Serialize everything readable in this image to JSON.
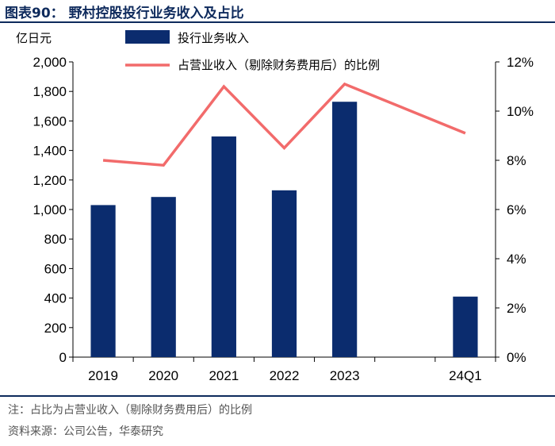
{
  "title": "图表90：  野村控股投行业务收入及占比",
  "footer": {
    "note": "注：占比为占营业收入（剔除财务费用后）的比例",
    "source": "资料来源：公司公告，华泰研究"
  },
  "colors": {
    "bar": "#0b2c6e",
    "line": "#f26b6b",
    "title": "#0e2a5c"
  },
  "chart_data": {
    "type": "bar+line",
    "categories": [
      "2019",
      "2020",
      "2021",
      "2022",
      "2023",
      "",
      "24Q1"
    ],
    "left_unit": "亿日元",
    "left_ylim": [
      0,
      2000
    ],
    "left_ticks": [
      "0",
      "200",
      "400",
      "600",
      "800",
      "1,000",
      "1,200",
      "1,400",
      "1,600",
      "1,800",
      "2,000"
    ],
    "right_ylim": [
      0,
      12
    ],
    "right_ticks": [
      "0%",
      "2%",
      "4%",
      "6%",
      "8%",
      "10%",
      "12%"
    ],
    "legend_position": "top-center",
    "series": [
      {
        "name": "投行业务收入",
        "type": "bar",
        "axis": "left",
        "values": [
          1030,
          1085,
          1495,
          1130,
          1730,
          null,
          410
        ]
      },
      {
        "name": "占营业收入（剔除财务费用后）的比例",
        "type": "line",
        "axis": "right",
        "unit": "%",
        "values": [
          8.0,
          7.8,
          11.0,
          8.5,
          11.1,
          null,
          9.1
        ]
      }
    ]
  }
}
